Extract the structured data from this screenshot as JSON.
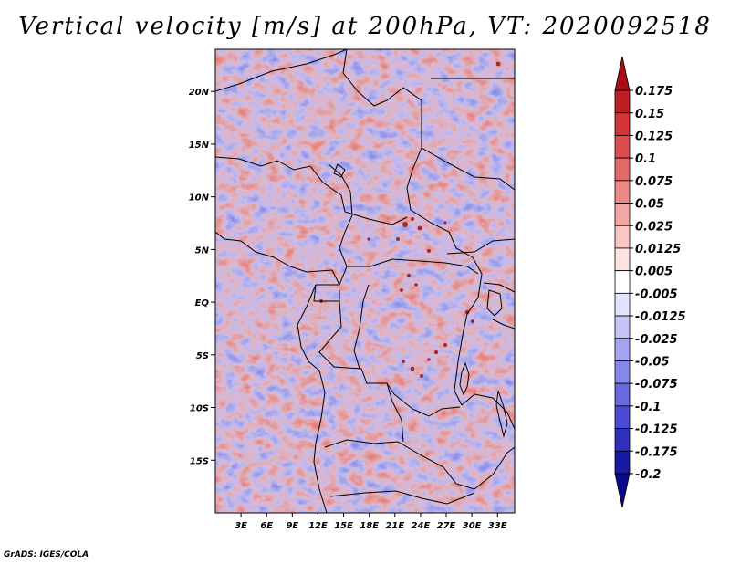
{
  "map": {
    "title": "Vertical velocity [m/s] at 200hPa, VT: 2020092518",
    "software_credit": "GrADS: IGES/COLA",
    "variable": "vertical velocity",
    "level_hpa": 200,
    "units": "m/s",
    "valid_time": "2020092518",
    "lon_range": [
      0,
      35
    ],
    "lat_range": [
      -20,
      24
    ],
    "lon_ticks": [
      {
        "value": 3,
        "label": "3E"
      },
      {
        "value": 6,
        "label": "6E"
      },
      {
        "value": 9,
        "label": "9E"
      },
      {
        "value": 12,
        "label": "12E"
      },
      {
        "value": 15,
        "label": "15E"
      },
      {
        "value": 18,
        "label": "18E"
      },
      {
        "value": 21,
        "label": "21E"
      },
      {
        "value": 24,
        "label": "24E"
      },
      {
        "value": 27,
        "label": "27E"
      },
      {
        "value": 30,
        "label": "30E"
      },
      {
        "value": 33,
        "label": "33E"
      }
    ],
    "lat_ticks": [
      {
        "value": 20,
        "label": "20N"
      },
      {
        "value": 15,
        "label": "15N"
      },
      {
        "value": 10,
        "label": "10N"
      },
      {
        "value": 5,
        "label": "5N"
      },
      {
        "value": 0,
        "label": "EQ"
      },
      {
        "value": -5,
        "label": "5S"
      },
      {
        "value": -10,
        "label": "10S"
      },
      {
        "value": -15,
        "label": "15S"
      }
    ]
  },
  "colorbar": {
    "labels": [
      "0.175",
      "0.15",
      "0.125",
      "0.1",
      "0.075",
      "0.05",
      "0.025",
      "0.0125",
      "0.005",
      "-0.005",
      "-0.0125",
      "-0.025",
      "-0.05",
      "-0.075",
      "-0.1",
      "-0.125",
      "-0.175",
      "-0.2"
    ],
    "colors": [
      "#a50f15",
      "#bd1f24",
      "#d03434",
      "#dc4c4c",
      "#e46a68",
      "#ec8886",
      "#f3a6a4",
      "#f9c6c4",
      "#fde3e2",
      "#ffffff",
      "#e3e3fd",
      "#c4c4f8",
      "#a4a4f2",
      "#8686ec",
      "#6868e2",
      "#4a4ad4",
      "#3030bf",
      "#1818a6",
      "#0a0a8a"
    ]
  }
}
